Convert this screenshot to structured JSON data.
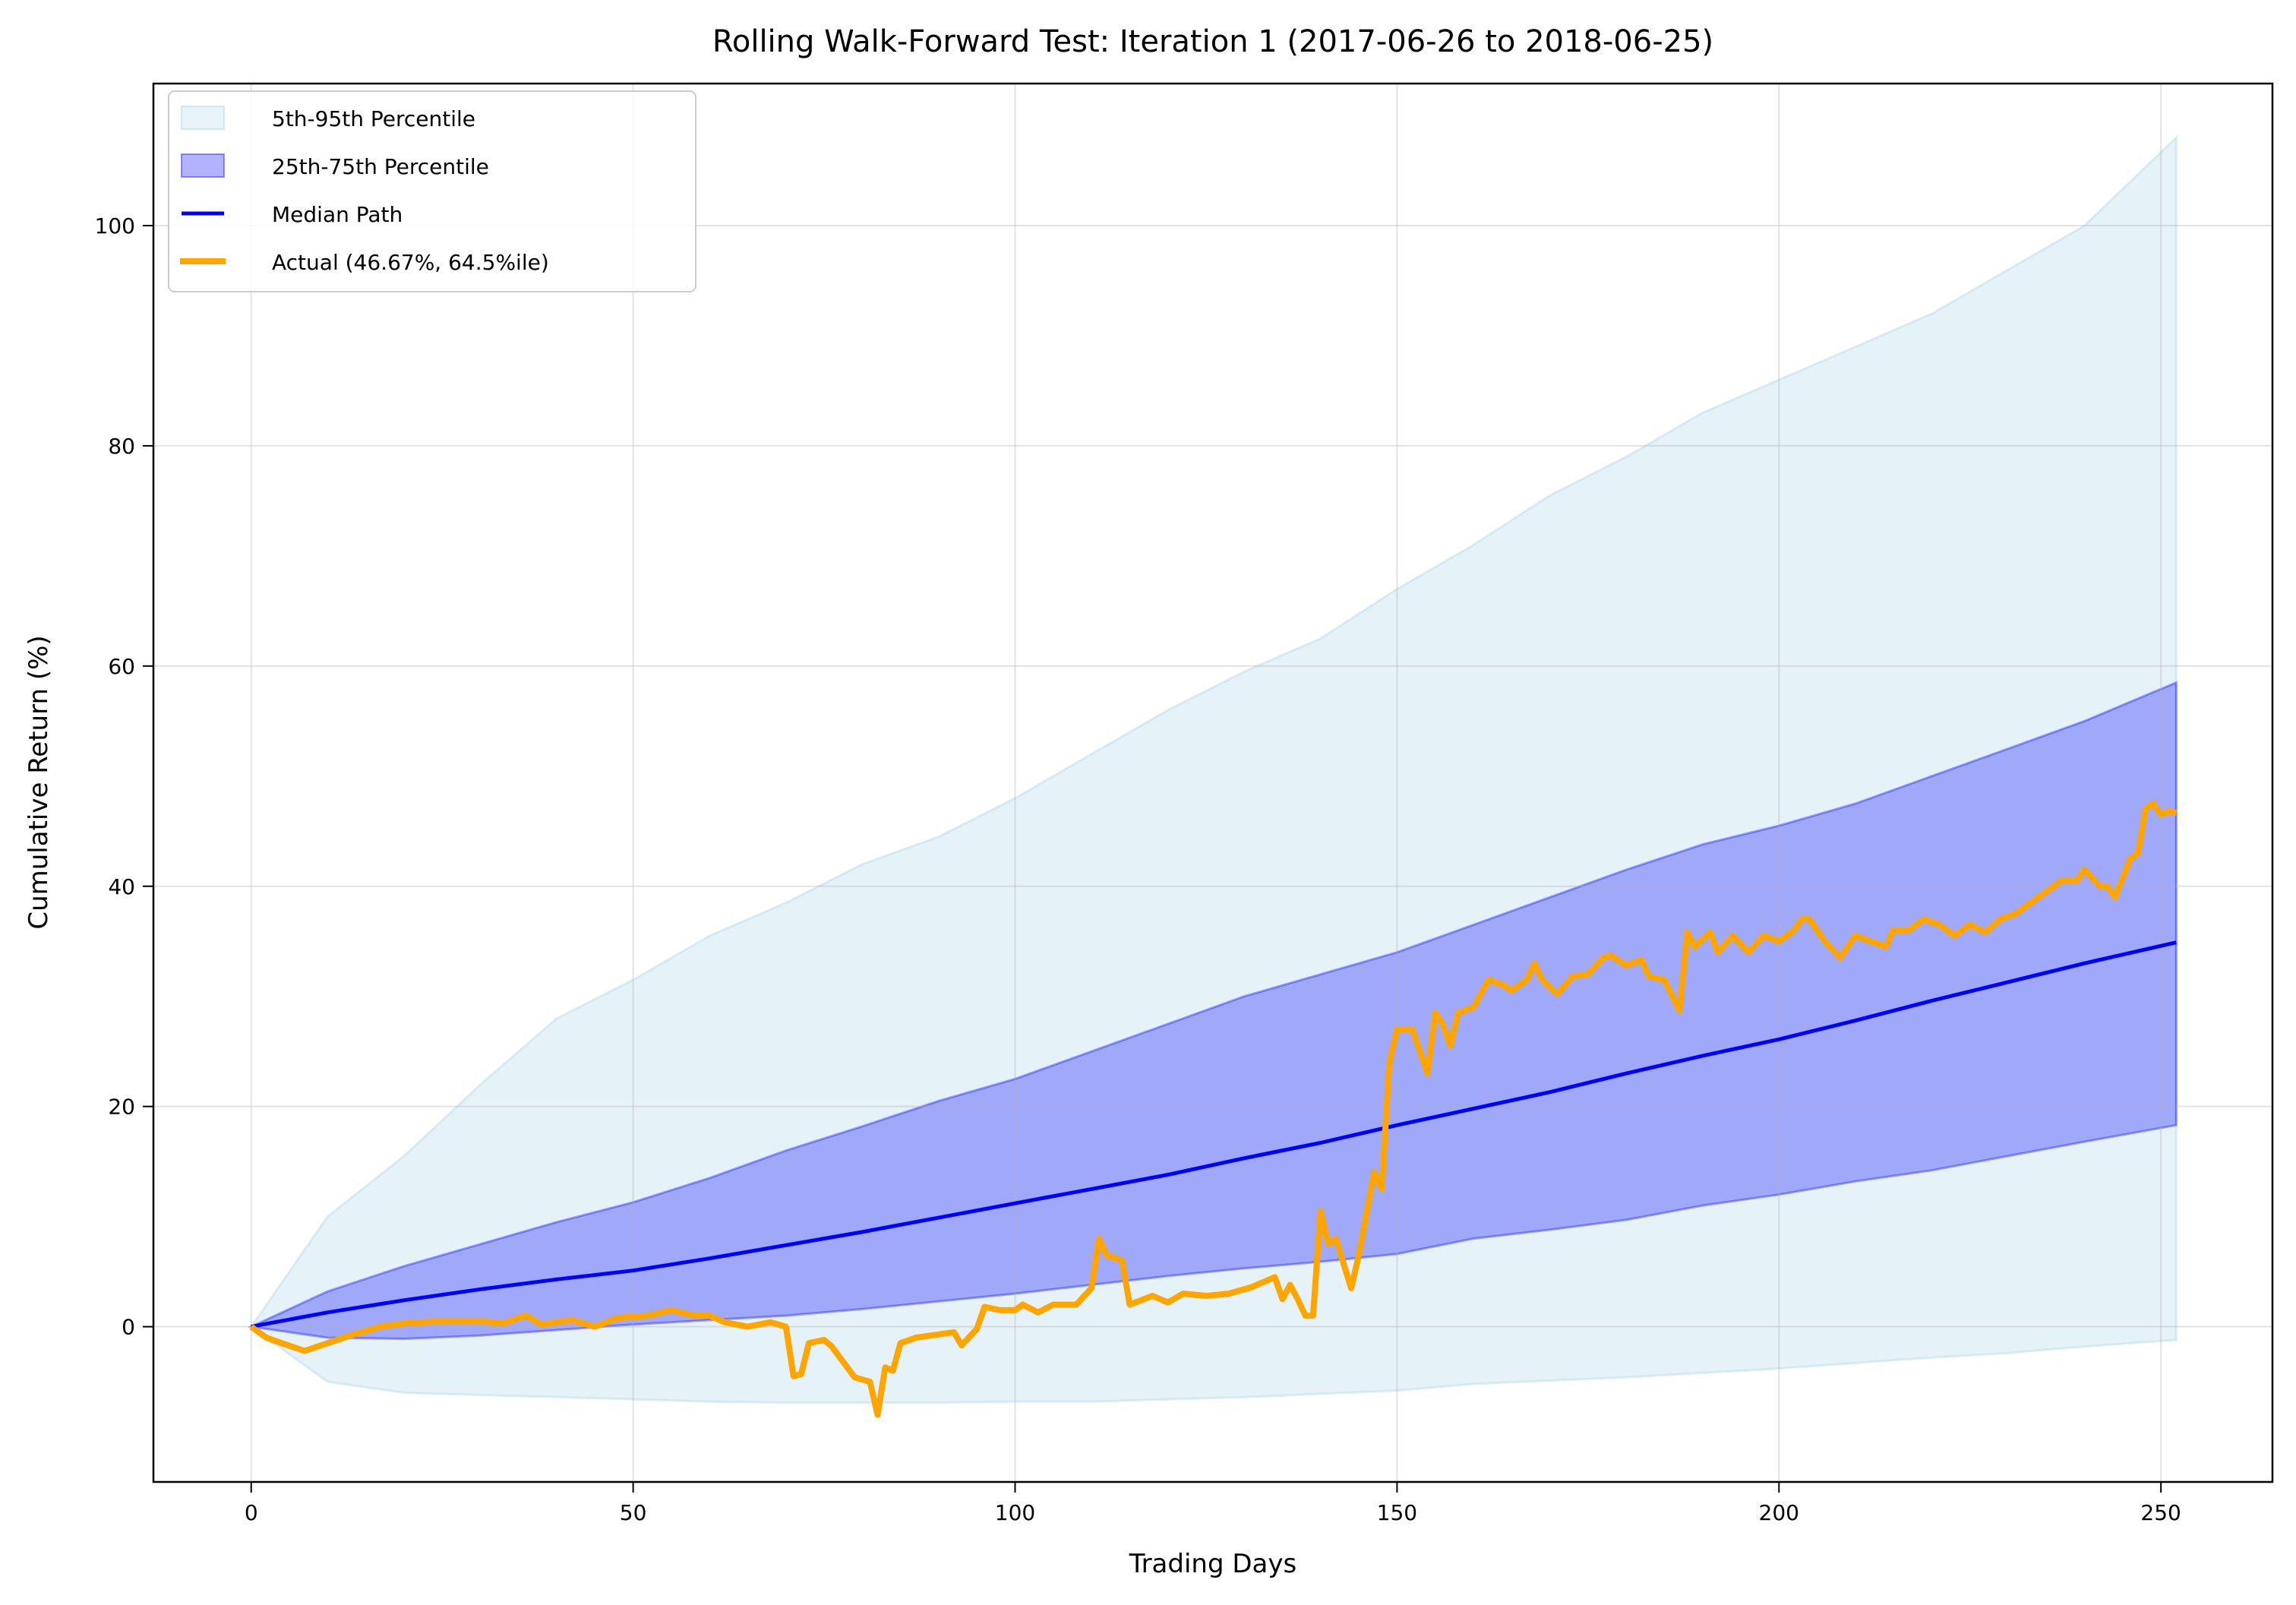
{
  "chart_data": {
    "type": "line",
    "title": "Rolling Walk-Forward Test: Iteration 1 (2017-06-26 to 2018-06-25)",
    "xlabel": "Trading Days",
    "ylabel": "Cumulative Return (%)",
    "xlim": [
      -12.8,
      264.6
    ],
    "ylim": [
      -14.1,
      112.9
    ],
    "xticks": [
      0,
      50,
      100,
      150,
      200,
      250
    ],
    "xtick_labels": [
      "0",
      "50",
      "100",
      "150",
      "200",
      "250"
    ],
    "yticks": [
      0,
      20,
      40,
      60,
      80,
      100
    ],
    "ytick_labels": [
      "0",
      "20",
      "40",
      "60",
      "80",
      "100"
    ],
    "grid": true,
    "legend_position": "top-left",
    "legend": [
      {
        "label": "5th-95th Percentile",
        "kind": "band",
        "color": "#add8e6"
      },
      {
        "label": "25th-75th Percentile",
        "kind": "band",
        "color": "#0000ff"
      },
      {
        "label": "Median Path",
        "kind": "line",
        "color": "#0000ff"
      },
      {
        "label": "Actual (46.67%, 64.5%ile)",
        "kind": "line",
        "color": "#ffa500"
      }
    ],
    "band_x": [
      0,
      10,
      20,
      30,
      40,
      50,
      60,
      70,
      80,
      90,
      100,
      110,
      120,
      130,
      140,
      150,
      160,
      170,
      180,
      190,
      200,
      210,
      220,
      230,
      240,
      252
    ],
    "p5": [
      0,
      -5,
      -6,
      -6.2,
      -6.4,
      -6.6,
      -6.8,
      -6.9,
      -6.9,
      -6.9,
      -6.8,
      -6.8,
      -6.6,
      -6.4,
      -6.1,
      -5.8,
      -5.2,
      -4.9,
      -4.6,
      -4.2,
      -3.8,
      -3.3,
      -2.8,
      -2.4,
      -1.8,
      -1.2
    ],
    "p25": [
      0,
      -1,
      -1.1,
      -0.8,
      -0.3,
      0.2,
      0.6,
      1,
      1.6,
      2.3,
      3,
      3.8,
      4.6,
      5.3,
      5.9,
      6.6,
      8,
      8.8,
      9.7,
      11,
      12,
      13.2,
      14.2,
      15.5,
      16.8,
      18.3
    ],
    "median": [
      0,
      1.3,
      2.4,
      3.4,
      4.3,
      5.1,
      6.2,
      7.4,
      8.6,
      9.9,
      11.2,
      12.5,
      13.8,
      15.3,
      16.7,
      18.3,
      19.8,
      21.3,
      23,
      24.6,
      26.1,
      27.8,
      29.6,
      31.3,
      33,
      34.9
    ],
    "p75": [
      0,
      3.2,
      5.5,
      7.5,
      9.5,
      11.3,
      13.5,
      16,
      18.2,
      20.5,
      22.5,
      25,
      27.5,
      30,
      32,
      34,
      36.5,
      39,
      41.5,
      43.8,
      45.5,
      47.5,
      50,
      52.5,
      55,
      58.5
    ],
    "p95": [
      0,
      10,
      15.5,
      22,
      28,
      31.5,
      35.5,
      38.5,
      42,
      44.5,
      48,
      52,
      56,
      59.5,
      62.5,
      67,
      71,
      75.5,
      79,
      83,
      86,
      89,
      92,
      96,
      100,
      108
    ],
    "actual": {
      "x": [
        0,
        2,
        4,
        7,
        10,
        13,
        17,
        20,
        25,
        30,
        33,
        36,
        38,
        42,
        45,
        48,
        52,
        55,
        58,
        60,
        62,
        65,
        68,
        70,
        71,
        72,
        73,
        75,
        76,
        79,
        81,
        82,
        83,
        84,
        85,
        87,
        89,
        92,
        93,
        95,
        96,
        98,
        100,
        101,
        103,
        105,
        108,
        110,
        111,
        112,
        114,
        115,
        118,
        120,
        122,
        125,
        128,
        131,
        134,
        135,
        136,
        137,
        138,
        139,
        140,
        141,
        142,
        144,
        145,
        147,
        148,
        149,
        150,
        152,
        153,
        154,
        155,
        156,
        157,
        158,
        160,
        162,
        164,
        165,
        167,
        168,
        169,
        171,
        173,
        175,
        177,
        178,
        180,
        182,
        183,
        185,
        187,
        188,
        189,
        191,
        192,
        194,
        196,
        198,
        200,
        202,
        203,
        204,
        206,
        208,
        210,
        212,
        214,
        215,
        217,
        219,
        221,
        223,
        225,
        227,
        229,
        231,
        233,
        235,
        237,
        239,
        240,
        242,
        243,
        244,
        246,
        247,
        248,
        249,
        250,
        251,
        252
      ],
      "y": [
        0,
        -1,
        -1.5,
        -2.2,
        -1.5,
        -0.8,
        0,
        0.3,
        0.5,
        0.5,
        0.3,
        1,
        0.2,
        0.6,
        0,
        0.8,
        1,
        1.5,
        1,
        1,
        0.4,
        0,
        0.4,
        0,
        -4.5,
        -4.3,
        -1.5,
        -1.2,
        -1.8,
        -4.6,
        -5,
        -8,
        -3.7,
        -4,
        -1.5,
        -1,
        -0.8,
        -0.5,
        -1.7,
        -0.2,
        1.8,
        1.5,
        1.5,
        2,
        1.3,
        2,
        2,
        3.5,
        8,
        6.5,
        6,
        2,
        2.8,
        2.2,
        3,
        2.8,
        3,
        3.6,
        4.5,
        2.5,
        3.8,
        2.5,
        1,
        1,
        10.5,
        7.5,
        8,
        3.5,
        6.5,
        14,
        12.5,
        24,
        27,
        27,
        25,
        23,
        28.5,
        27.5,
        25.5,
        28.5,
        29,
        31.5,
        31,
        30.5,
        31.5,
        33,
        31.5,
        30.2,
        31.8,
        32,
        33.5,
        33.7,
        32.8,
        33.3,
        31.8,
        31.5,
        28.7,
        35.8,
        34.5,
        35.8,
        34,
        35.5,
        34,
        35.5,
        35,
        36,
        37,
        37,
        35,
        33.5,
        35.5,
        35,
        34.5,
        36,
        36,
        37,
        36.5,
        35.5,
        36.5,
        35.8,
        37,
        37.5,
        38.5,
        39.5,
        40.5,
        40.5,
        41.5,
        40,
        40,
        39,
        42.5,
        43,
        47,
        47.5,
        46.5,
        46.8,
        46.67
      ]
    }
  }
}
